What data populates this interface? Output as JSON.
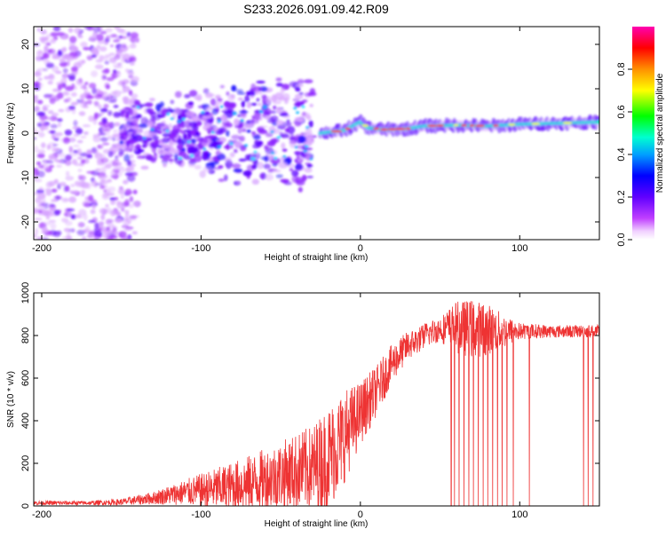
{
  "chart_data": [
    {
      "type": "heatmap",
      "title": "S233.2026.091.09.42.R09",
      "xlabel": "Height of straight line (km)",
      "ylabel": "Frequency (Hz)",
      "xlim": [
        -205,
        150
      ],
      "ylim": [
        -24,
        24
      ],
      "xticks": [
        -200,
        -100,
        0,
        100
      ],
      "xtick_labels": [
        "-200",
        "-100",
        "0",
        "100"
      ],
      "yticks": [
        -20,
        -10,
        0,
        10,
        20
      ],
      "ytick_labels": [
        "-20",
        "-10",
        "0",
        "10",
        "20"
      ],
      "colorbar": {
        "label": "Normalized spectral amplitude",
        "range": [
          0,
          1
        ],
        "ticks": [
          0.0,
          0.2,
          0.4,
          0.6,
          0.8
        ],
        "tick_labels": [
          "0.0",
          "0.2",
          "0.4",
          "0.6",
          "0.8"
        ],
        "colors": [
          "#ffffff",
          "#d946ef",
          "#6a00ff",
          "#0000ff",
          "#00a0ff",
          "#00ffcc",
          "#00ff00",
          "#ffff00",
          "#ff8000",
          "#ff0000",
          "#ff00aa"
        ]
      },
      "features": {
        "noise_region_x": [
          -205,
          -150
        ],
        "blob_region_x": [
          -150,
          -30
        ],
        "ridge_region_x": [
          -25,
          150
        ],
        "ridge_frequency_hz": [
          [
            -25,
            0.0
          ],
          [
            -10,
            0.6
          ],
          [
            0,
            2.5
          ],
          [
            5,
            1.2
          ],
          [
            15,
            0.8
          ],
          [
            30,
            1.0
          ],
          [
            40,
            1.6
          ],
          [
            60,
            1.8
          ],
          [
            80,
            1.6
          ],
          [
            100,
            2.0
          ],
          [
            120,
            2.2
          ],
          [
            150,
            2.5
          ]
        ]
      }
    },
    {
      "type": "line",
      "xlabel": "Height of straight line (km)",
      "ylabel": "SNR (10 * v/v)",
      "xlim": [
        -205,
        150
      ],
      "ylim": [
        0,
        1000
      ],
      "xticks": [
        -200,
        -100,
        0,
        100
      ],
      "xtick_labels": [
        "-200",
        "-100",
        "0",
        "100"
      ],
      "yticks": [
        0,
        200,
        400,
        600,
        800,
        1000
      ],
      "ytick_labels": [
        "0",
        "200",
        "400",
        "600",
        "800",
        "1000"
      ],
      "color": "#ee3333",
      "envelope": {
        "x": [
          -205,
          -170,
          -150,
          -130,
          -110,
          -90,
          -70,
          -50,
          -30,
          -20,
          -10,
          0,
          10,
          20,
          30,
          40,
          50,
          60,
          70,
          80,
          90,
          100,
          120,
          150
        ],
        "base": [
          15,
          15,
          20,
          40,
          70,
          90,
          120,
          160,
          200,
          250,
          350,
          450,
          550,
          680,
          760,
          800,
          830,
          840,
          830,
          830,
          820,
          820,
          820,
          820
        ],
        "amp": [
          10,
          10,
          15,
          30,
          60,
          100,
          130,
          160,
          200,
          250,
          220,
          150,
          120,
          90,
          70,
          60,
          60,
          120,
          140,
          120,
          80,
          40,
          30,
          30
        ]
      },
      "dropouts_x": [
        57,
        59,
        62,
        65,
        68,
        71,
        74,
        77,
        80,
        83,
        86,
        89,
        92,
        96,
        106,
        140,
        143,
        146
      ]
    }
  ]
}
